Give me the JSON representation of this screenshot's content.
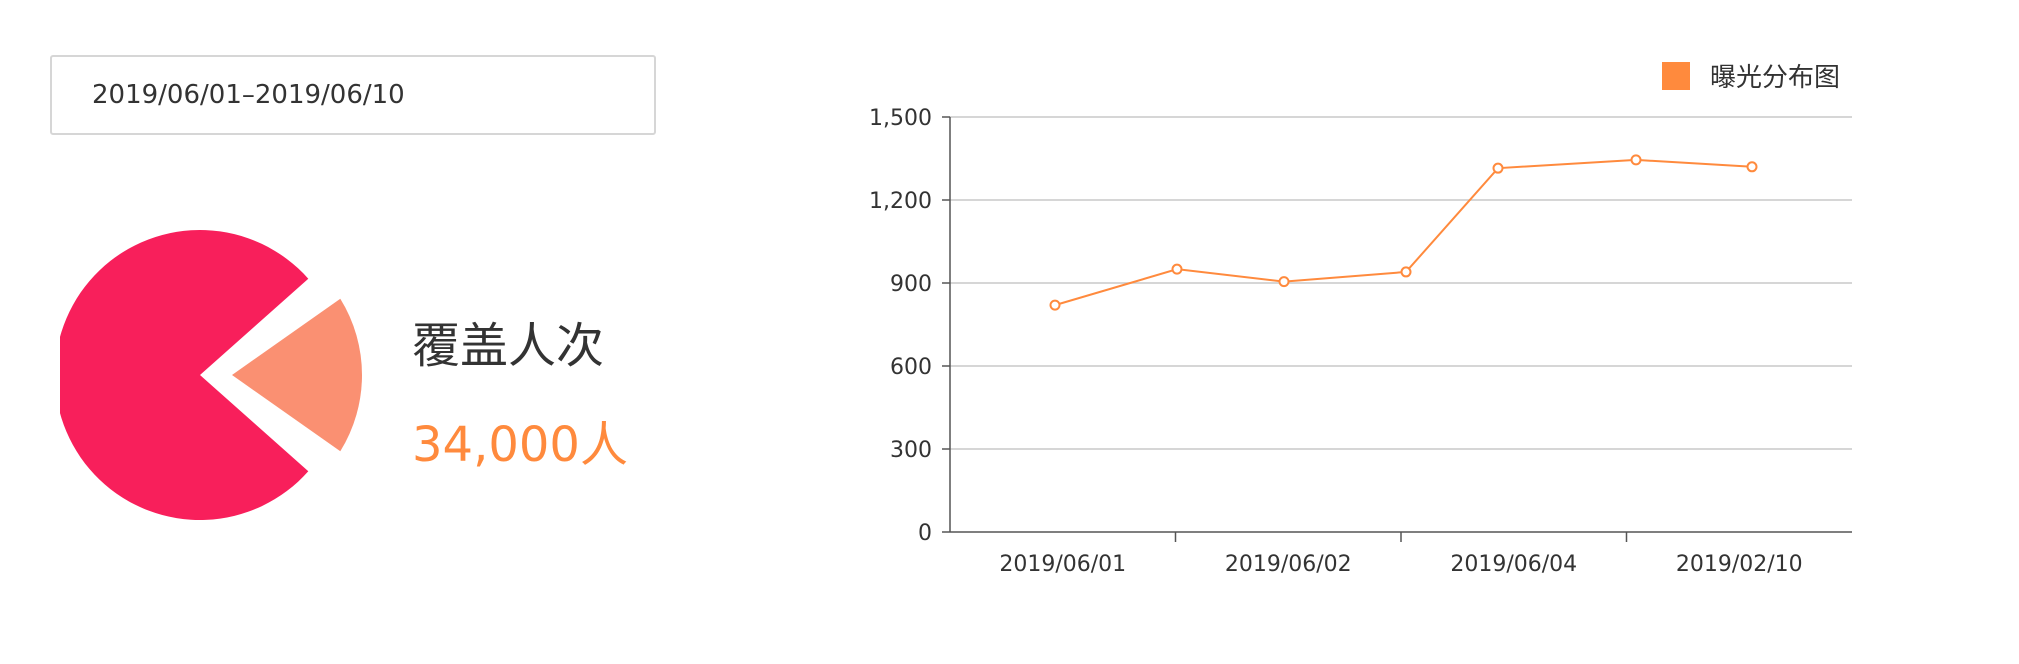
{
  "filter": {
    "date_range": "2019/06/01–2019/06/10"
  },
  "coverage": {
    "title": "覆盖人次",
    "value": "34,000人",
    "pie": {
      "type": "pie",
      "slices": [
        {
          "label": "",
          "value": 82,
          "color": "#f81f5b"
        },
        {
          "label": "",
          "value": 18,
          "color": "#fa9072"
        }
      ]
    }
  },
  "chart_data": {
    "type": "line",
    "legend": "曝光分布图",
    "legend_position": "top-right",
    "series": [
      {
        "name": "曝光分布图",
        "color": "#ff8a3d",
        "values": [
          820,
          950,
          905,
          940,
          1315,
          1345,
          1320
        ]
      }
    ],
    "category_labels": [
      "2019/06/01",
      "2019/06/02",
      "2019/06/04",
      "2019/02/10"
    ],
    "ylim": [
      0,
      1500
    ],
    "yticks": [
      "0",
      "300",
      "600",
      "900",
      "1,200",
      "1,500"
    ],
    "grid": true,
    "xlabel": "",
    "ylabel": ""
  }
}
